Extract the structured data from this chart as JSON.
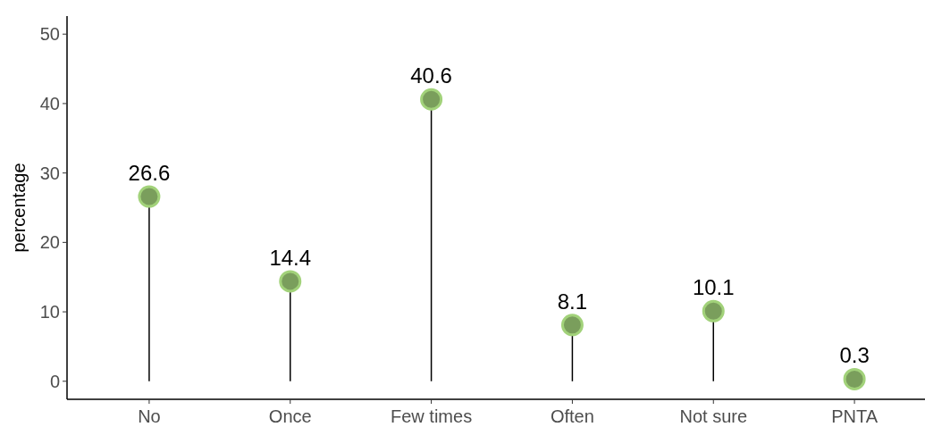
{
  "chart_data": {
    "type": "lollipop",
    "ylabel": "percentage",
    "categories": [
      "No",
      "Once",
      "Few times",
      "Often",
      "Not sure",
      "PNTA"
    ],
    "values": [
      26.6,
      14.4,
      40.6,
      8.1,
      10.1,
      0.3
    ],
    "color": "#7a9e5c",
    "ylim": [
      -2.6,
      52.6
    ],
    "yticks": [
      0,
      10,
      20,
      30,
      40,
      50
    ],
    "data_labels": true
  }
}
